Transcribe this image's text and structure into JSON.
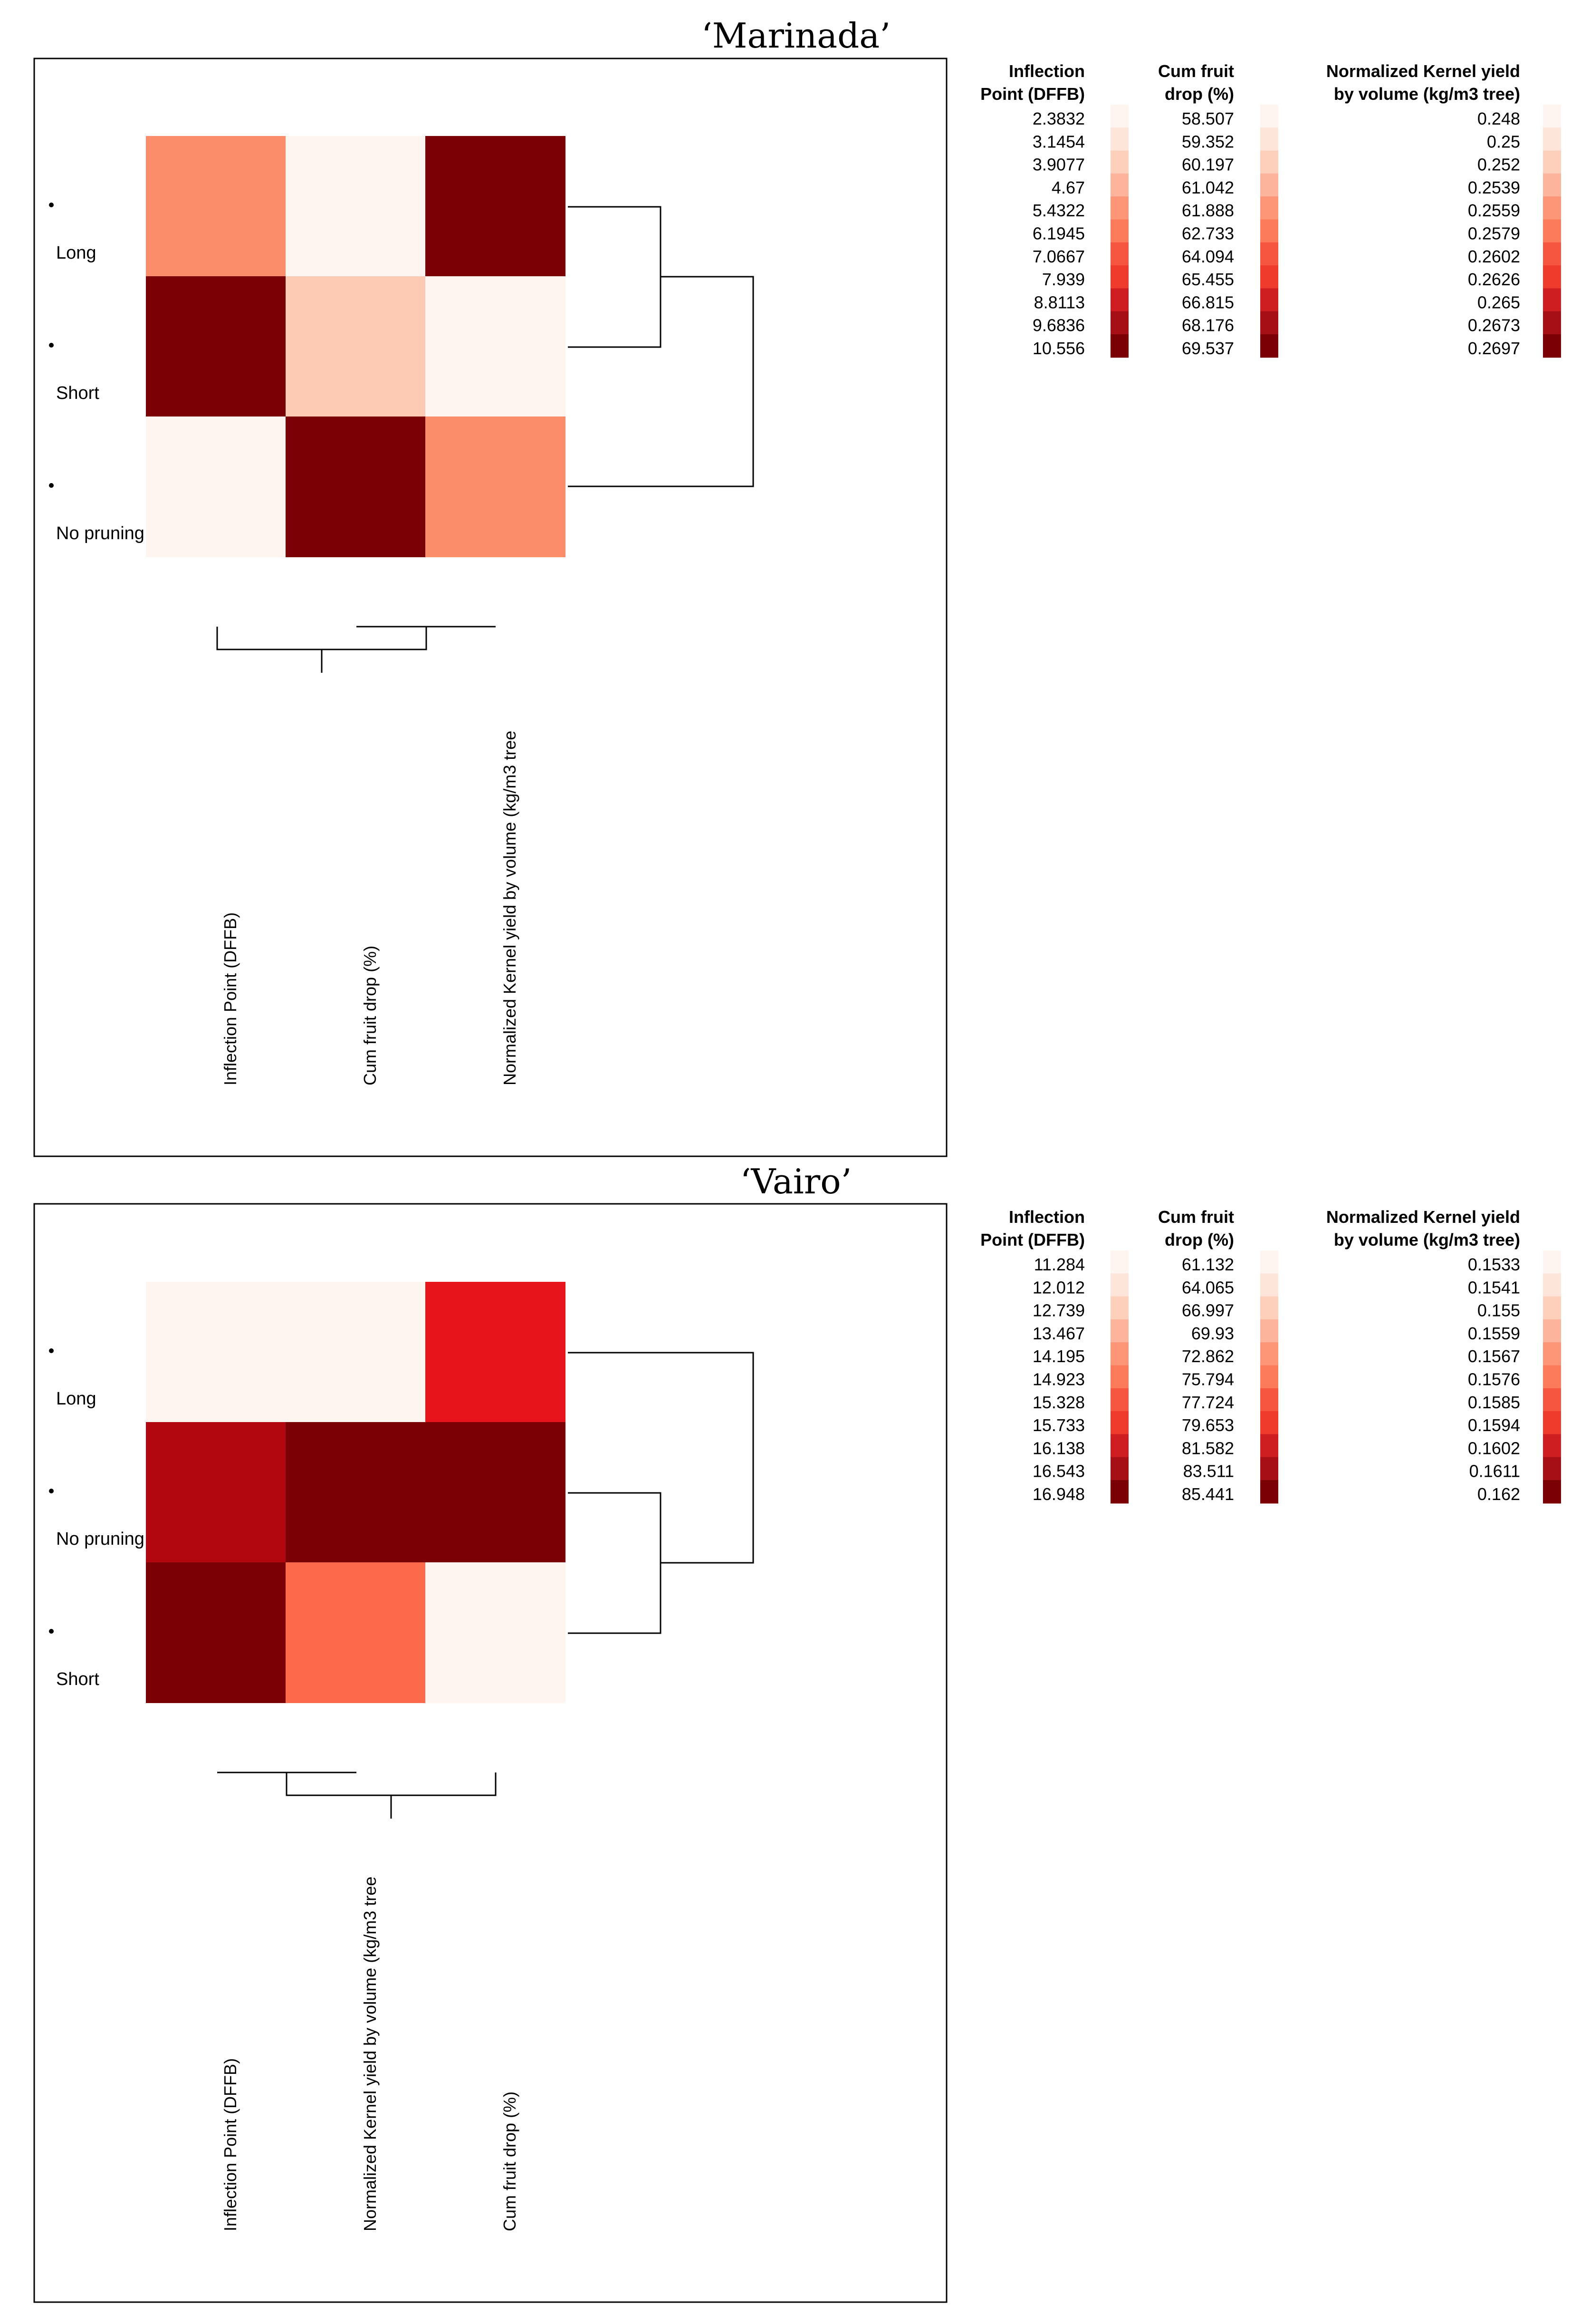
{
  "palette": [
    "#fff5f0",
    "#fee0d2",
    "#fcbba1",
    "#fc9272",
    "#fb6a4a",
    "#ef3b2c",
    "#cb181d",
    "#a50f15",
    "#67000d"
  ],
  "chart_data": [
    {
      "type": "heatmap",
      "title": "‘Marinada’",
      "rows": [
        "Long",
        "Short",
        "No pruning"
      ],
      "columns": [
        "Inflection Point (DFFB)",
        "Cum fruit drop (%)",
        "Normalized Kernel yield by volume (kg/m3 tree"
      ],
      "cells": [
        [
          "#fc8d6a",
          "#fff5f0",
          "#7a0006"
        ],
        [
          "#7a0006",
          "#fdcbb4",
          "#fff5f0"
        ],
        [
          "#fff5f0",
          "#7a0006",
          "#fc8d6a"
        ]
      ],
      "legend": {
        "headers": [
          [
            "Inflection",
            "Point (DFFB)"
          ],
          [
            "Cum fruit",
            "drop (%)"
          ],
          [
            "Normalized Kernel yield",
            "by volume (kg/m3 tree)"
          ]
        ],
        "values": [
          [
            "2.3832",
            "3.1454",
            "3.9077",
            "4.67",
            "5.4322",
            "6.1945",
            "7.0667",
            "7.939",
            "8.8113",
            "9.6836",
            "10.556"
          ],
          [
            "58.507",
            "59.352",
            "60.197",
            "61.042",
            "61.888",
            "62.733",
            "64.094",
            "65.455",
            "66.815",
            "68.176",
            "69.537"
          ],
          [
            "0.248",
            "0.25",
            "0.252",
            "0.2539",
            "0.2559",
            "0.2579",
            "0.2602",
            "0.2626",
            "0.265",
            "0.2673",
            "0.2697"
          ]
        ],
        "swatches": [
          "#fff5f0",
          "#fee5d9",
          "#fdd0bc",
          "#fcb49c",
          "#fc9677",
          "#fb7b5b",
          "#f6553f",
          "#ef3b2c",
          "#cf1e22",
          "#a50f15",
          "#7a0006"
        ]
      }
    },
    {
      "type": "heatmap",
      "title": "‘Vairo’",
      "rows": [
        "Long",
        "No pruning",
        "Short"
      ],
      "columns": [
        "Inflection Point (DFFB)",
        "Normalized Kernel yield by volume (kg/m3 tree",
        "Cum fruit drop (%)"
      ],
      "cells": [
        [
          "#fff5f0",
          "#fff5f0",
          "#e8141c"
        ],
        [
          "#b2070f",
          "#7a0006",
          "#7a0006"
        ],
        [
          "#7a0006",
          "#fd694b",
          "#fff5f0"
        ]
      ],
      "legend": {
        "headers": [
          [
            "Inflection",
            "Point (DFFB)"
          ],
          [
            "Cum fruit",
            "drop (%)"
          ],
          [
            "Normalized Kernel yield",
            "by volume (kg/m3 tree)"
          ]
        ],
        "values": [
          [
            "11.284",
            "12.012",
            "12.739",
            "13.467",
            "14.195",
            "14.923",
            "15.328",
            "15.733",
            "16.138",
            "16.543",
            "16.948"
          ],
          [
            "61.132",
            "64.065",
            "66.997",
            "69.93",
            "72.862",
            "75.794",
            "77.724",
            "79.653",
            "81.582",
            "83.511",
            "85.441"
          ],
          [
            "0.1533",
            "0.1541",
            "0.155",
            "0.1559",
            "0.1567",
            "0.1576",
            "0.1585",
            "0.1594",
            "0.1602",
            "0.1611",
            "0.162"
          ]
        ],
        "swatches": [
          "#fff5f0",
          "#fee5d9",
          "#fdd0bc",
          "#fcb49c",
          "#fc9677",
          "#fb7b5b",
          "#f6553f",
          "#ef3b2c",
          "#cf1e22",
          "#a50f15",
          "#7a0006"
        ]
      }
    }
  ]
}
